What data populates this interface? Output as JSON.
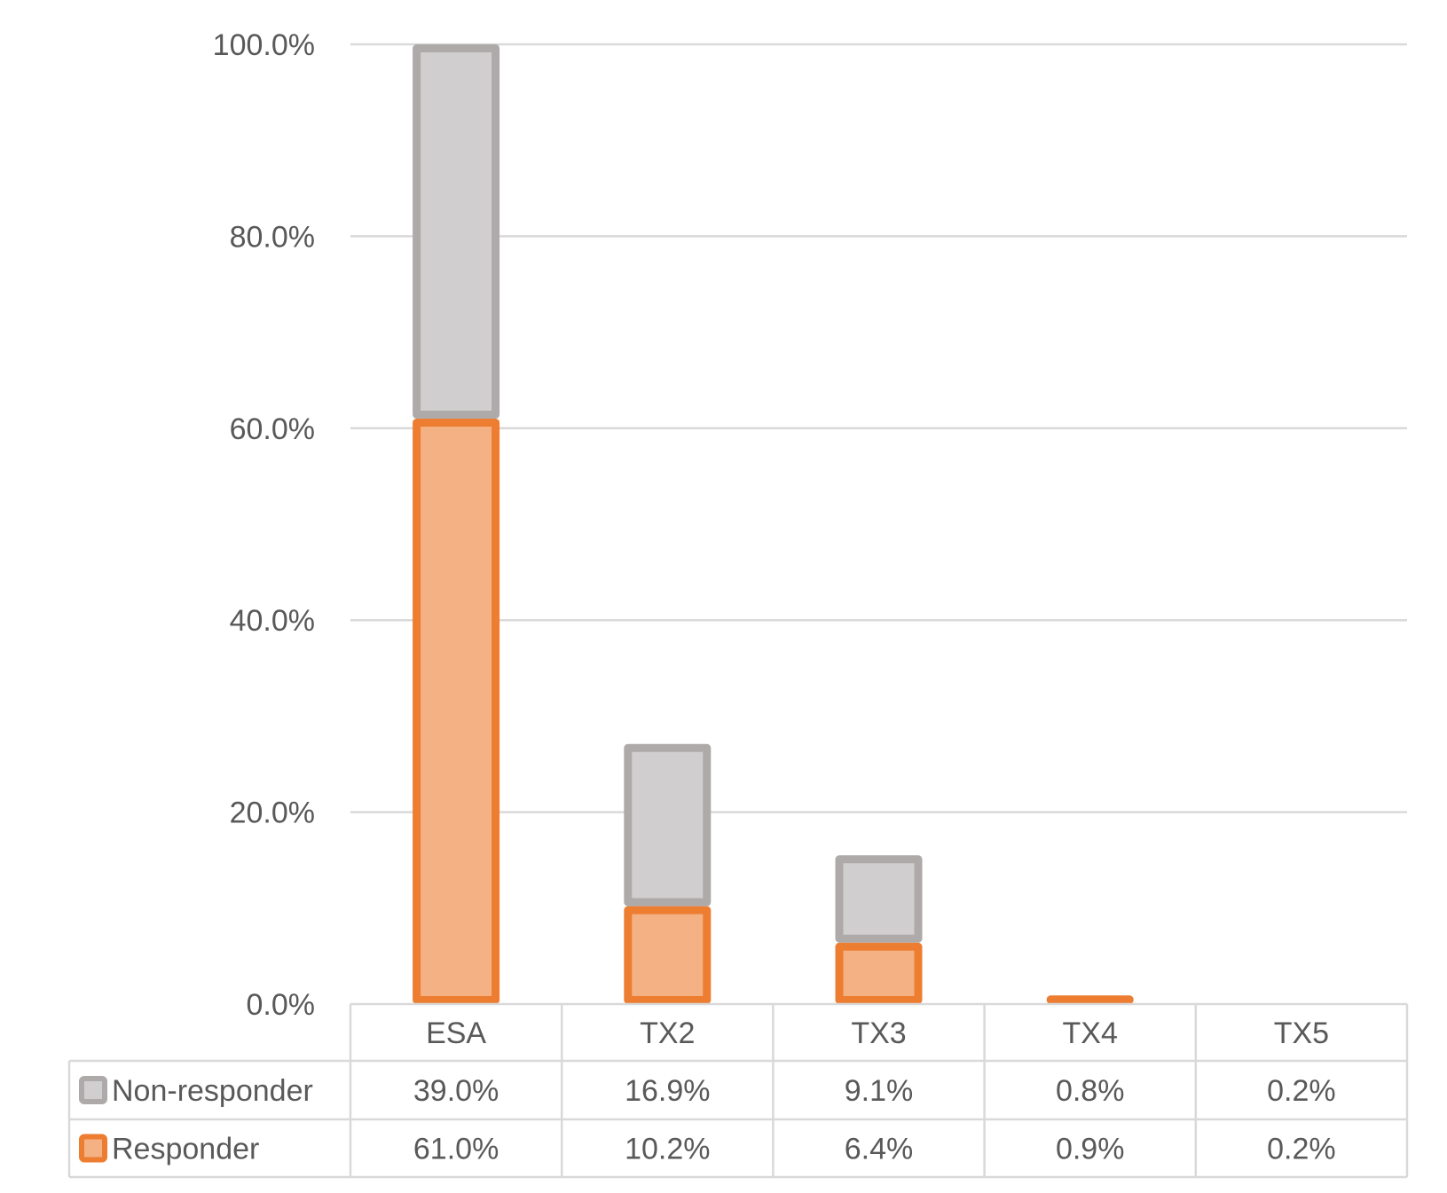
{
  "chart_data": {
    "type": "bar",
    "stacked": true,
    "categories": [
      "ESA",
      "TX2",
      "TX3",
      "TX4",
      "TX5"
    ],
    "series": [
      {
        "name": "Responder",
        "values": [
          61.0,
          10.2,
          6.4,
          0.9,
          0.2
        ],
        "labels": [
          "61.0%",
          "10.2%",
          "6.4%",
          "0.9%",
          "0.2%"
        ],
        "fill": "#F4B183",
        "stroke": "#ED7D31"
      },
      {
        "name": "Non-responder",
        "values": [
          39.0,
          16.9,
          9.1,
          0.8,
          0.2
        ],
        "labels": [
          "39.0%",
          "16.9%",
          "9.1%",
          "0.8%",
          "0.2%"
        ],
        "fill": "#D0CECE",
        "stroke": "#AEAAAA"
      }
    ],
    "table_order": [
      "Non-responder",
      "Responder"
    ],
    "ylim": [
      0,
      100
    ],
    "yticks": [
      0,
      20,
      40,
      60,
      80,
      100
    ],
    "ytick_labels": [
      "0.0%",
      "20.0%",
      "40.0%",
      "60.0%",
      "80.0%",
      "100.0%"
    ],
    "grid": true,
    "data_table": true,
    "title": "",
    "xlabel": "",
    "ylabel": ""
  }
}
